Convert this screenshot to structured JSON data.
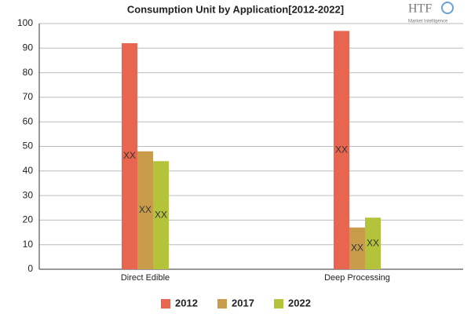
{
  "chart_data": {
    "type": "bar",
    "title": "Consumption Unit by  Application[2012-2022]",
    "categories": [
      "Direct Edible",
      "Deep Processing"
    ],
    "series": [
      {
        "name": "2012",
        "color": "#e8664f",
        "values": [
          92,
          97
        ],
        "value_labels": [
          "XX",
          "XX"
        ]
      },
      {
        "name": "2017",
        "color": "#c99c4c",
        "values": [
          48,
          17
        ],
        "value_labels": [
          "XX",
          "XX"
        ]
      },
      {
        "name": "2022",
        "color": "#b5c33a",
        "values": [
          44,
          21
        ],
        "value_labels": [
          "XX",
          "XX"
        ]
      }
    ],
    "ylim": [
      0,
      100
    ],
    "yticks": [
      0,
      10,
      20,
      30,
      40,
      50,
      60,
      70,
      80,
      90,
      100
    ],
    "grid": true,
    "legend": "bottom"
  },
  "logo": {
    "name": "HTF",
    "tagline": "Market Intelligence"
  }
}
